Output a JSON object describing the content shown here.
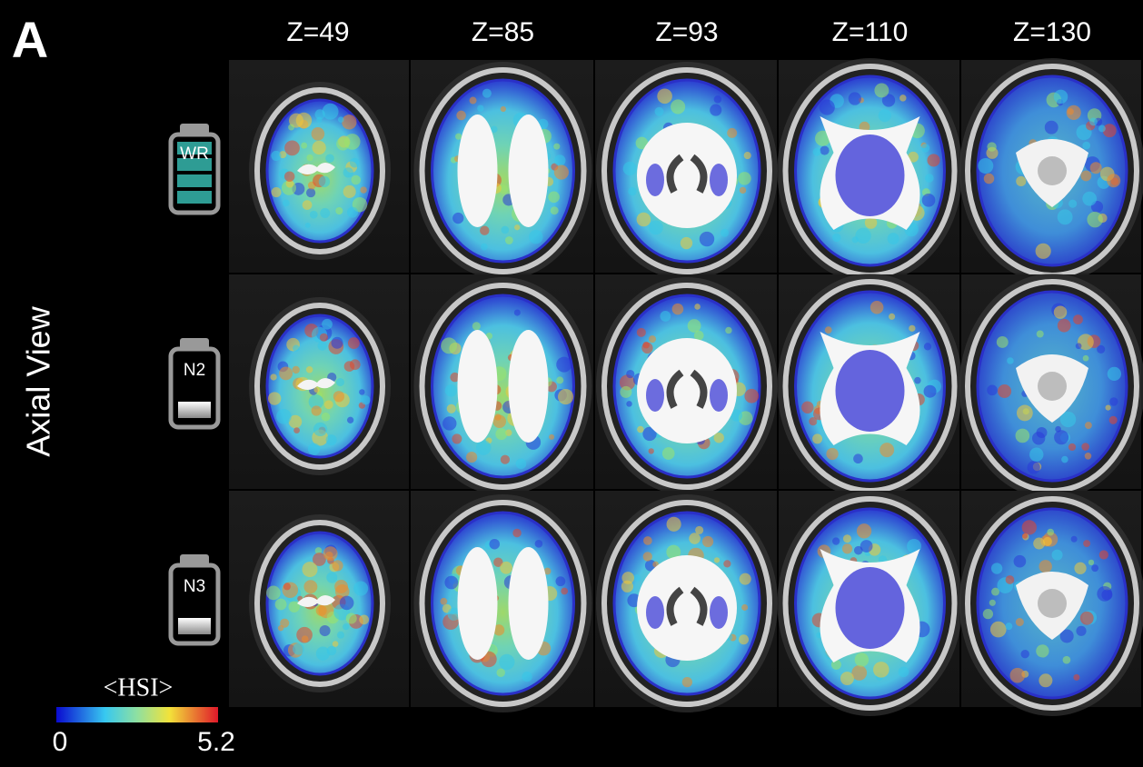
{
  "panel_label": "A",
  "view_label": "Axial View",
  "columns": [
    "Z=49",
    "Z=85",
    "Z=93",
    "Z=110",
    "Z=130"
  ],
  "rows": [
    "WR",
    "N2",
    "N3"
  ],
  "colorbar": {
    "title": "<HSI>",
    "min": 0,
    "max": 5.2
  }
}
